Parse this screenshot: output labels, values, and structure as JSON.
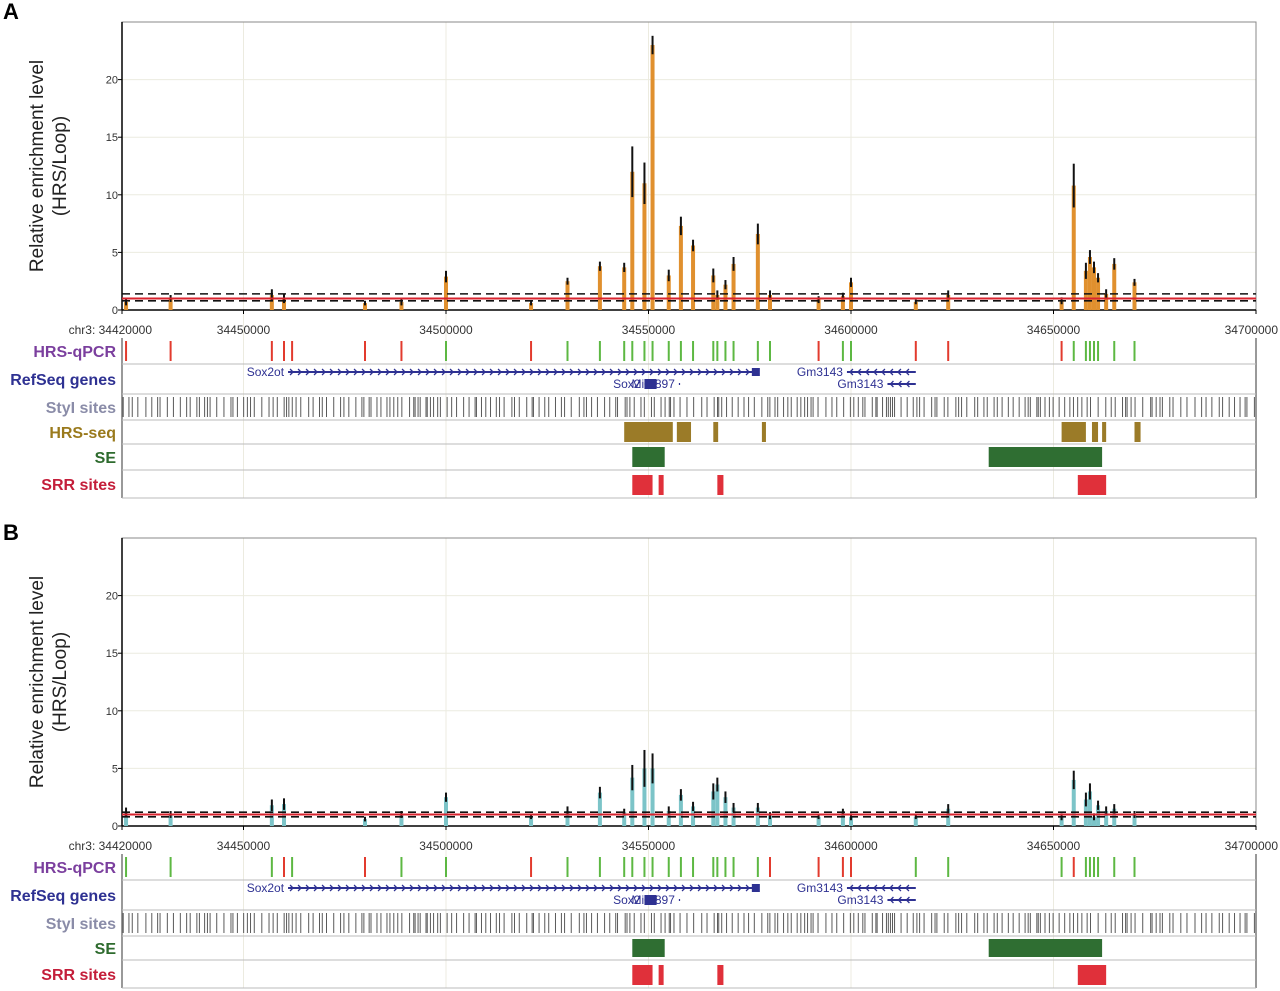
{
  "chart_data": [
    {
      "panel": "A",
      "type": "bar",
      "ylabel_line1": "Relative enrichment level",
      "ylabel_line2": "(HRS/Loop)",
      "y_ticks": [
        "0",
        "5",
        "10",
        "15",
        "20"
      ],
      "ylim": [
        0,
        25
      ],
      "x_ticks": [
        "chr3: 34420000",
        "34450000",
        "34500000",
        "34550000",
        "34600000",
        "34650000",
        "34700000"
      ],
      "xlim": [
        34420000,
        34700000
      ],
      "bar_color": "#e0902e",
      "reference_line": 1,
      "reference_band": [
        0.8,
        1.4
      ],
      "series": [
        {
          "x": [
            34421000,
            34432000,
            34457000,
            34460000,
            34480000,
            34489000,
            34500000,
            34521000,
            34530000,
            34538000,
            34544000,
            34546000,
            34549000,
            34551000,
            34555000,
            34558000,
            34561000,
            34566000,
            34567000,
            34569000,
            34571000,
            34577000,
            34580000,
            34592000,
            34598000,
            34600000,
            34616000,
            34624000,
            34652000,
            34655000,
            34658000,
            34659000,
            34660000,
            34661000,
            34663000,
            34665000,
            34670000
          ],
          "values": [
            0.7,
            1.0,
            1.3,
            1.0,
            0.6,
            0.7,
            2.9,
            0.6,
            2.5,
            3.8,
            3.7,
            12.0,
            11.0,
            23.0,
            3.0,
            7.3,
            5.6,
            3.0,
            1.3,
            2.2,
            4.0,
            6.6,
            1.3,
            0.9,
            1.2,
            2.4,
            0.7,
            1.3,
            0.8,
            10.8,
            3.4,
            4.6,
            3.7,
            2.8,
            1.4,
            4.0,
            2.4
          ],
          "errors": [
            0.3,
            0.3,
            0.5,
            0.4,
            0.2,
            0.3,
            0.5,
            0.2,
            0.3,
            0.4,
            0.4,
            2.2,
            1.8,
            0.8,
            0.5,
            0.8,
            0.5,
            0.6,
            0.4,
            0.4,
            0.6,
            0.9,
            0.4,
            0.3,
            0.3,
            0.4,
            0.2,
            0.4,
            0.3,
            1.9,
            0.7,
            0.6,
            0.5,
            0.4,
            0.4,
            0.5,
            0.3
          ]
        }
      ],
      "tracks": {
        "hrs_qpcr_label": "HRS-qPCR",
        "refseq_label": "RefSeq genes",
        "styi_label": "StyI sites",
        "hrs_seq_label": "HRS-seq",
        "se_label": "SE",
        "srr_label": "SRR sites"
      },
      "hrs_qpcr": [
        {
          "x": 34421000,
          "c": "red"
        },
        {
          "x": 34432000,
          "c": "red"
        },
        {
          "x": 34457000,
          "c": "red"
        },
        {
          "x": 34460000,
          "c": "red"
        },
        {
          "x": 34462000,
          "c": "red"
        },
        {
          "x": 34480000,
          "c": "red"
        },
        {
          "x": 34489000,
          "c": "red"
        },
        {
          "x": 34500000,
          "c": "green"
        },
        {
          "x": 34521000,
          "c": "red"
        },
        {
          "x": 34530000,
          "c": "green"
        },
        {
          "x": 34538000,
          "c": "green"
        },
        {
          "x": 34544000,
          "c": "green"
        },
        {
          "x": 34546000,
          "c": "green"
        },
        {
          "x": 34549000,
          "c": "green"
        },
        {
          "x": 34551000,
          "c": "green"
        },
        {
          "x": 34555000,
          "c": "green"
        },
        {
          "x": 34558000,
          "c": "green"
        },
        {
          "x": 34561000,
          "c": "green"
        },
        {
          "x": 34566000,
          "c": "green"
        },
        {
          "x": 34567000,
          "c": "green"
        },
        {
          "x": 34569000,
          "c": "green"
        },
        {
          "x": 34571000,
          "c": "green"
        },
        {
          "x": 34577000,
          "c": "green"
        },
        {
          "x": 34580000,
          "c": "green"
        },
        {
          "x": 34592000,
          "c": "red"
        },
        {
          "x": 34598000,
          "c": "green"
        },
        {
          "x": 34600000,
          "c": "green"
        },
        {
          "x": 34616000,
          "c": "red"
        },
        {
          "x": 34624000,
          "c": "red"
        },
        {
          "x": 34652000,
          "c": "red"
        },
        {
          "x": 34655000,
          "c": "green"
        },
        {
          "x": 34658000,
          "c": "green"
        },
        {
          "x": 34659000,
          "c": "green"
        },
        {
          "x": 34660000,
          "c": "green"
        },
        {
          "x": 34661000,
          "c": "green"
        },
        {
          "x": 34665000,
          "c": "green"
        },
        {
          "x": 34670000,
          "c": "green"
        }
      ],
      "hrs_seq": [
        [
          34544000,
          34556000
        ],
        [
          34557000,
          34560500
        ],
        [
          34566000,
          34567200
        ],
        [
          34578000,
          34579000
        ],
        [
          34652000,
          34658000
        ],
        [
          34659500,
          34661000
        ],
        [
          34662000,
          34663000
        ],
        [
          34670000,
          34671500
        ]
      ],
      "se": [
        [
          34546000,
          34554000
        ],
        [
          34634000,
          34662000
        ]
      ],
      "srr": [
        [
          34546000,
          34551000
        ],
        [
          34552500,
          34553300
        ],
        [
          34567000,
          34568500
        ],
        [
          34656000,
          34663000
        ]
      ]
    },
    {
      "panel": "B",
      "type": "bar",
      "ylabel_line1": "Relative enrichment level",
      "ylabel_line2": "(HRS/Loop)",
      "y_ticks": [
        "0",
        "5",
        "10",
        "15",
        "20"
      ],
      "ylim": [
        0,
        25
      ],
      "x_ticks": [
        "chr3: 34420000",
        "34450000",
        "34500000",
        "34550000",
        "34600000",
        "34650000",
        "34700000"
      ],
      "xlim": [
        34420000,
        34700000
      ],
      "bar_color": "#7cc4c8",
      "reference_line": 1,
      "reference_band": [
        0.8,
        1.2
      ],
      "series": [
        {
          "x": [
            34421000,
            34432000,
            34457000,
            34460000,
            34480000,
            34489000,
            34500000,
            34521000,
            34530000,
            34538000,
            34544000,
            34546000,
            34549000,
            34551000,
            34555000,
            34558000,
            34561000,
            34566000,
            34567000,
            34569000,
            34571000,
            34577000,
            34580000,
            34592000,
            34598000,
            34600000,
            34616000,
            34624000,
            34652000,
            34655000,
            34658000,
            34659000,
            34660000,
            34661000,
            34663000,
            34665000,
            34670000
          ],
          "values": [
            1.2,
            1.0,
            1.8,
            1.9,
            0.6,
            1.0,
            2.5,
            0.8,
            1.3,
            2.9,
            1.2,
            4.2,
            5.0,
            5.0,
            1.3,
            2.7,
            1.7,
            3.0,
            3.6,
            2.5,
            1.6,
            1.6,
            0.9,
            0.8,
            1.2,
            0.8,
            0.8,
            1.5,
            0.8,
            4.0,
            2.3,
            3.0,
            0.8,
            1.8,
            1.3,
            1.5,
            1.0
          ],
          "errors": [
            0.4,
            0.3,
            0.5,
            0.5,
            0.2,
            0.3,
            0.4,
            0.2,
            0.4,
            0.5,
            0.3,
            1.1,
            1.6,
            1.3,
            0.4,
            0.5,
            0.4,
            0.7,
            0.6,
            0.5,
            0.4,
            0.4,
            0.3,
            0.2,
            0.3,
            0.3,
            0.2,
            0.4,
            0.3,
            0.8,
            0.6,
            0.7,
            0.3,
            0.4,
            0.4,
            0.4,
            0.3
          ]
        }
      ],
      "tracks": {
        "hrs_qpcr_label": "HRS-qPCR",
        "refseq_label": "RefSeq genes",
        "styi_label": "StyI sites",
        "se_label": "SE",
        "srr_label": "SRR sites"
      },
      "hrs_qpcr": [
        {
          "x": 34421000,
          "c": "green"
        },
        {
          "x": 34432000,
          "c": "green"
        },
        {
          "x": 34457000,
          "c": "green"
        },
        {
          "x": 34460000,
          "c": "red"
        },
        {
          "x": 34462000,
          "c": "green"
        },
        {
          "x": 34480000,
          "c": "red"
        },
        {
          "x": 34489000,
          "c": "green"
        },
        {
          "x": 34500000,
          "c": "green"
        },
        {
          "x": 34521000,
          "c": "red"
        },
        {
          "x": 34530000,
          "c": "green"
        },
        {
          "x": 34538000,
          "c": "green"
        },
        {
          "x": 34544000,
          "c": "green"
        },
        {
          "x": 34546000,
          "c": "green"
        },
        {
          "x": 34549000,
          "c": "green"
        },
        {
          "x": 34551000,
          "c": "green"
        },
        {
          "x": 34555000,
          "c": "green"
        },
        {
          "x": 34558000,
          "c": "green"
        },
        {
          "x": 34561000,
          "c": "green"
        },
        {
          "x": 34566000,
          "c": "green"
        },
        {
          "x": 34567000,
          "c": "green"
        },
        {
          "x": 34569000,
          "c": "green"
        },
        {
          "x": 34571000,
          "c": "green"
        },
        {
          "x": 34577000,
          "c": "green"
        },
        {
          "x": 34580000,
          "c": "red"
        },
        {
          "x": 34592000,
          "c": "red"
        },
        {
          "x": 34598000,
          "c": "red"
        },
        {
          "x": 34600000,
          "c": "red"
        },
        {
          "x": 34616000,
          "c": "green"
        },
        {
          "x": 34624000,
          "c": "green"
        },
        {
          "x": 34652000,
          "c": "green"
        },
        {
          "x": 34655000,
          "c": "red"
        },
        {
          "x": 34658000,
          "c": "green"
        },
        {
          "x": 34659000,
          "c": "green"
        },
        {
          "x": 34660000,
          "c": "green"
        },
        {
          "x": 34661000,
          "c": "green"
        },
        {
          "x": 34665000,
          "c": "green"
        },
        {
          "x": 34670000,
          "c": "green"
        }
      ],
      "se": [
        [
          34546000,
          34554000
        ],
        [
          34634000,
          34662000
        ]
      ],
      "srr": [
        [
          34546000,
          34551000
        ],
        [
          34552500,
          34553300
        ],
        [
          34567000,
          34568500
        ],
        [
          34656000,
          34663000
        ]
      ]
    }
  ],
  "refseq": {
    "genes": [
      {
        "name": "Sox2ot",
        "start": 34461000,
        "end": 34577000,
        "strand": "+",
        "row": 0,
        "label_side": "left"
      },
      {
        "name": "Gm3143",
        "start": 34599000,
        "end": 34616000,
        "strand": "-",
        "row": 0,
        "label_side": "left"
      },
      {
        "name": "Mir1897",
        "start": 34557500,
        "end": 34557800,
        "strand": "+",
        "row": 1,
        "label_side": "left"
      },
      {
        "name": "Sox2",
        "start": 34549000,
        "end": 34552000,
        "strand": "+",
        "row": 1,
        "label_side": "left"
      },
      {
        "name": "Gm3143",
        "start": 34609000,
        "end": 34616000,
        "strand": "-",
        "row": 1,
        "label_side": "left"
      }
    ]
  },
  "colors": {
    "hrs_qpcr_label": "#7b3f9e",
    "refseq_label": "#2e3192",
    "styi_label": "#8a8ca8",
    "hrs_seq_label": "#9a7a1c",
    "se_label": "#2e6b2e",
    "srr_label": "#c41e3a",
    "qpcr_red": "#e23b2e",
    "qpcr_green": "#5db843",
    "hrs_seq_block": "#9b7b28",
    "se_block": "#2f6e32",
    "srr_block": "#e0303a",
    "gene": "#2e3192",
    "styi_tick": "#5a5a5a",
    "grid": "#ecebe0"
  }
}
